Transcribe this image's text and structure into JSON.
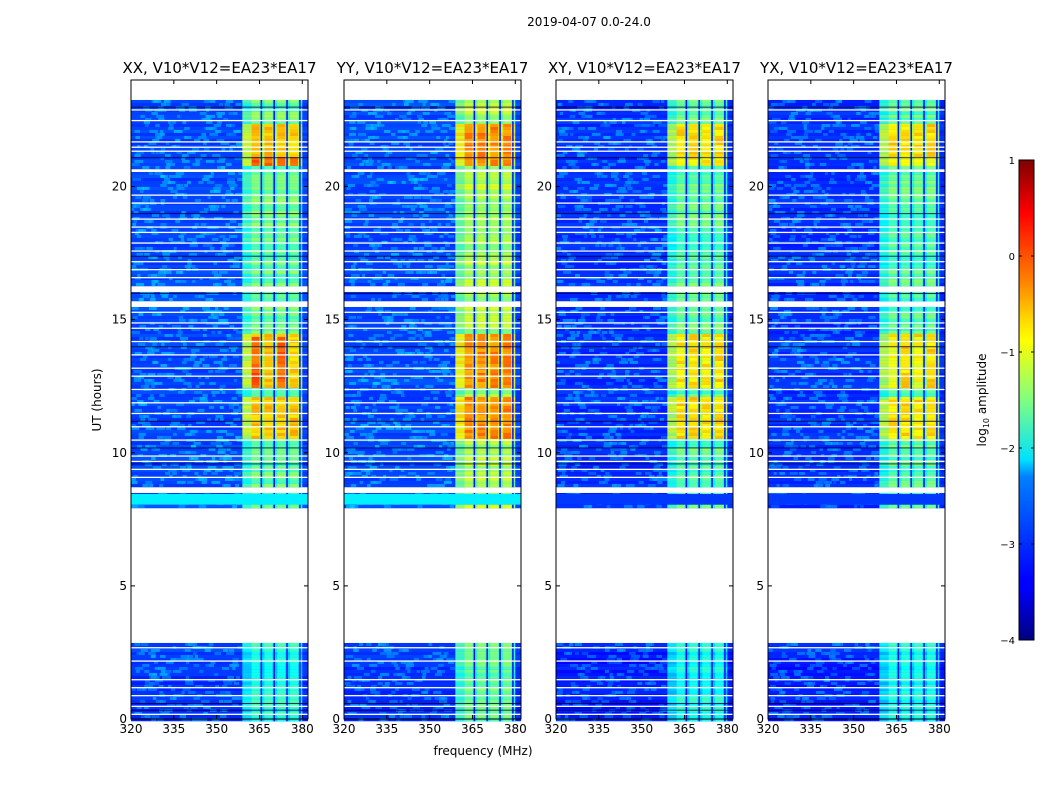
{
  "chart_data": {
    "type": "heatmap",
    "suptitle": "2019-04-07 0.0-24.0",
    "xlabel": "frequency (MHz)",
    "ylabel": "UT (hours)",
    "xlim": [
      320,
      382
    ],
    "ylim": [
      0,
      24
    ],
    "xticks": [
      320,
      335,
      350,
      365,
      380
    ],
    "yticks": [
      0,
      5,
      10,
      15,
      20
    ],
    "rfi_band_mhz": [
      359,
      380
    ],
    "channel_stripes_mhz": [
      364,
      368.5,
      373,
      377.5
    ],
    "missing_time_ranges_hours": [
      [
        2.9,
        8.0
      ],
      [
        8.5,
        8.8
      ],
      [
        20.55,
        20.75
      ],
      [
        15.55,
        15.75
      ],
      [
        16.15,
        16.3
      ]
    ],
    "bright_time_ranges_hours": [
      [
        12.5,
        14.5
      ],
      [
        10.6,
        12.2
      ],
      [
        20.8,
        22.4
      ]
    ],
    "panels": [
      {
        "title": "XX, V10*V12=EA23*EA17",
        "pol": "XX",
        "band_level": -1.3,
        "burst_level": -0.1,
        "cross": false
      },
      {
        "title": "YY, V10*V12=EA23*EA17",
        "pol": "YY",
        "band_level": -1.0,
        "burst_level": -0.3,
        "cross": false
      },
      {
        "title": "XY, V10*V12=EA23*EA17",
        "pol": "XY",
        "band_level": -1.4,
        "burst_level": -0.8,
        "cross": true
      },
      {
        "title": "YX, V10*V12=EA23*EA17",
        "pol": "YX",
        "band_level": -1.4,
        "burst_level": -0.9,
        "cross": true
      }
    ],
    "colorbar": {
      "label": "log10 amplitude",
      "label_prefix": "log",
      "label_sub": "10",
      "label_suffix": " amplitude",
      "vmin": -4,
      "vmax": 1,
      "ticks": [
        {
          "value": 1,
          "label": "1"
        },
        {
          "value": 0,
          "label": "0"
        },
        {
          "value": -1,
          "label": "−1"
        },
        {
          "value": -2,
          "label": "−2"
        },
        {
          "value": -3,
          "label": "−3"
        },
        {
          "value": -4,
          "label": "−4"
        }
      ],
      "colormap": "jet"
    }
  }
}
